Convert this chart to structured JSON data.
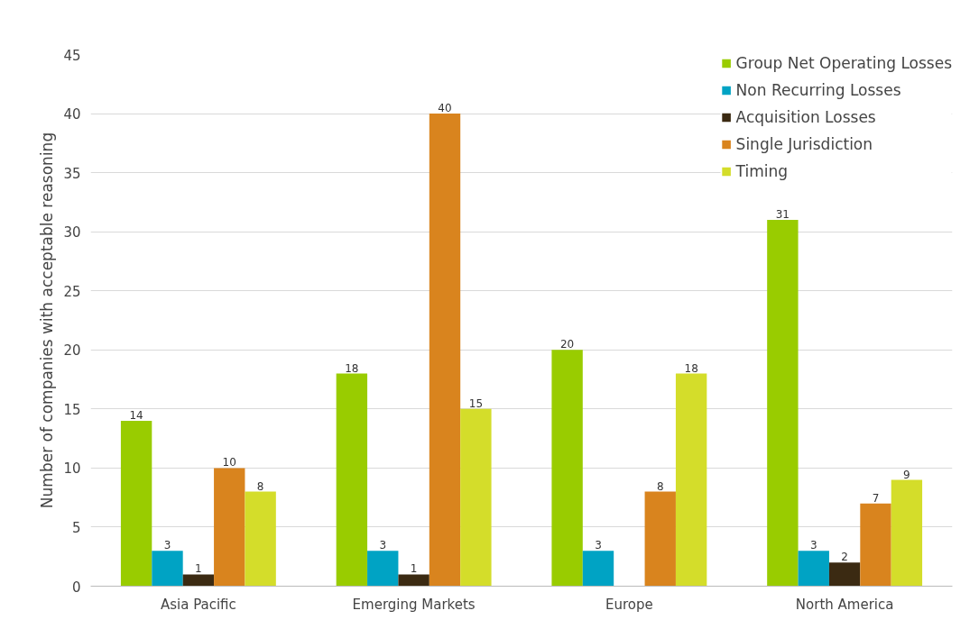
{
  "chart_data": {
    "type": "bar",
    "ylabel": "Number of companies with acceptable reasoning",
    "categories": [
      "Asia Pacific",
      "Emerging Markets",
      "Europe",
      "North America"
    ],
    "series": [
      {
        "name": "Group Net Operating Losses",
        "color": "#99cc00",
        "values": [
          14,
          18,
          20,
          31
        ]
      },
      {
        "name": "Non Recurring Losses",
        "color": "#00a3c4",
        "values": [
          3,
          3,
          3,
          3
        ]
      },
      {
        "name": "Acquisition Losses",
        "color": "#3b2a12",
        "values": [
          1,
          1,
          null,
          2
        ]
      },
      {
        "name": "Single Jurisdiction",
        "color": "#d9841e",
        "values": [
          10,
          40,
          8,
          7
        ]
      },
      {
        "name": "Timing",
        "color": "#d4dd2a",
        "values": [
          8,
          15,
          18,
          9
        ]
      }
    ],
    "ylim": [
      0,
      45
    ],
    "yticks": [
      0,
      5,
      10,
      15,
      20,
      25,
      30,
      35,
      40,
      45
    ],
    "grid": "y",
    "legend": "top right",
    "data_labels": true
  }
}
